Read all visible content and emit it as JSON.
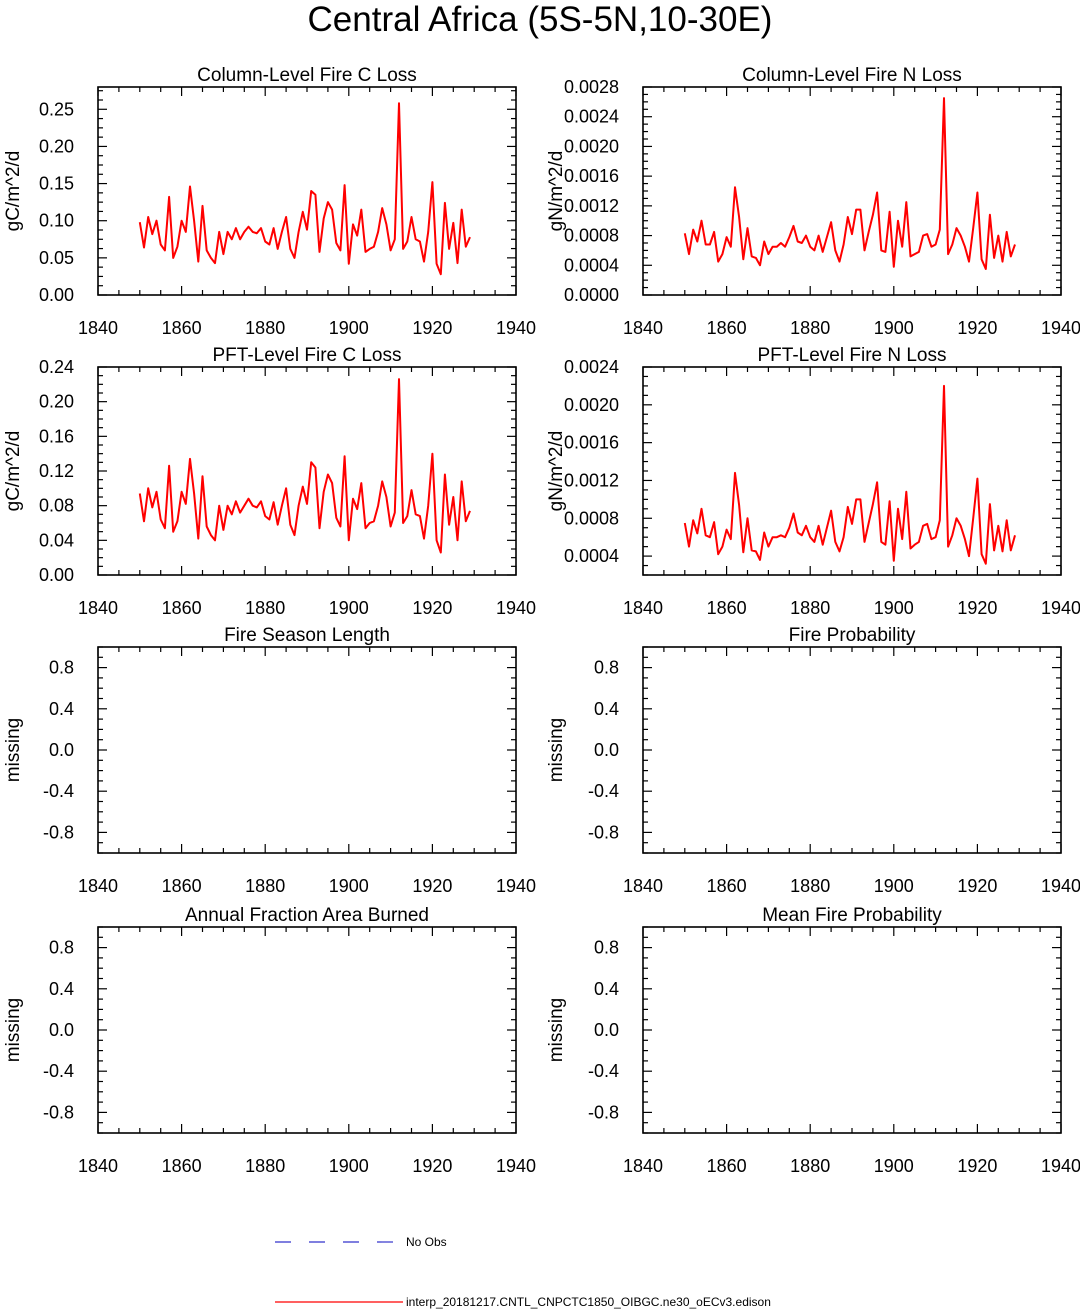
{
  "page_title": "Central Africa (5S-5N,10-30E)",
  "colors": {
    "model_line": "#ff0000",
    "obs_line": "#3333cc",
    "axis": "#000000"
  },
  "legend": {
    "obs_label": "No Obs",
    "model_label": "interp_20181217.CNTL_CNPCTC1850_OIBGC.ne30_oECv3.edison"
  },
  "chart_data": [
    {
      "type": "line",
      "title": "Column-Level Fire C Loss",
      "ylabel": "gC/m^2/d",
      "xlim": [
        1840,
        1940
      ],
      "ylim": [
        0,
        0.28
      ],
      "xticks": [
        1840,
        1860,
        1880,
        1900,
        1920,
        1940
      ],
      "yticks": [
        0,
        0.05,
        0.1,
        0.15,
        0.2,
        0.25
      ],
      "ytick_labels": [
        "0.00",
        "0.05",
        "0.10",
        "0.15",
        "0.20",
        "0.25"
      ],
      "series": [
        {
          "name": "interp_20181217.CNTL_CNPCTC1850_OIBGC.ne30_oECv3.edison",
          "x_start": 1850,
          "values": [
            0.098,
            0.064,
            0.105,
            0.082,
            0.1,
            0.068,
            0.06,
            0.132,
            0.05,
            0.065,
            0.1,
            0.085,
            0.146,
            0.1,
            0.045,
            0.12,
            0.06,
            0.05,
            0.043,
            0.085,
            0.055,
            0.085,
            0.075,
            0.09,
            0.075,
            0.085,
            0.092,
            0.085,
            0.083,
            0.09,
            0.072,
            0.068,
            0.09,
            0.062,
            0.085,
            0.105,
            0.062,
            0.05,
            0.085,
            0.112,
            0.088,
            0.14,
            0.135,
            0.058,
            0.103,
            0.125,
            0.115,
            0.07,
            0.06,
            0.148,
            0.042,
            0.095,
            0.08,
            0.115,
            0.058,
            0.062,
            0.065,
            0.085,
            0.117,
            0.095,
            0.06,
            0.075,
            0.258,
            0.062,
            0.072,
            0.105,
            0.075,
            0.072,
            0.045,
            0.085,
            0.152,
            0.042,
            0.028,
            0.124,
            0.062,
            0.097,
            0.043,
            0.115,
            0.065,
            0.078
          ]
        }
      ]
    },
    {
      "type": "line",
      "title": "Column-Level Fire N Loss",
      "ylabel": "gN/m^2/d",
      "xlim": [
        1840,
        1940
      ],
      "ylim": [
        0,
        0.0028
      ],
      "xticks": [
        1840,
        1860,
        1880,
        1900,
        1920,
        1940
      ],
      "yticks": [
        0,
        0.0004,
        0.0008,
        0.0012,
        0.0016,
        0.002,
        0.0024,
        0.0028
      ],
      "ytick_labels": [
        "0.0000",
        "0.0004",
        "0.0008",
        "0.0012",
        "0.0016",
        "0.0020",
        "0.0024",
        "0.0028"
      ],
      "series": [
        {
          "name": "interp_20181217.CNTL_CNPCTC1850_OIBGC.ne30_oECv3.edison",
          "x_start": 1850,
          "values": [
            0.00083,
            0.00055,
            0.00088,
            0.00072,
            0.001,
            0.00068,
            0.00068,
            0.00085,
            0.00045,
            0.00055,
            0.00078,
            0.00065,
            0.00145,
            0.00105,
            0.00048,
            0.0009,
            0.00052,
            0.0005,
            0.0004,
            0.00072,
            0.00055,
            0.00065,
            0.00065,
            0.0007,
            0.00065,
            0.00078,
            0.00093,
            0.00072,
            0.0007,
            0.0008,
            0.00065,
            0.0006,
            0.0008,
            0.00058,
            0.00078,
            0.00098,
            0.0006,
            0.00045,
            0.00068,
            0.00105,
            0.00082,
            0.00115,
            0.00115,
            0.0006,
            0.00085,
            0.00108,
            0.00138,
            0.0006,
            0.00058,
            0.00112,
            0.00038,
            0.001,
            0.00065,
            0.00125,
            0.00052,
            0.00055,
            0.00058,
            0.0008,
            0.00082,
            0.00065,
            0.00068,
            0.00088,
            0.00265,
            0.00055,
            0.00068,
            0.0009,
            0.0008,
            0.00065,
            0.00045,
            0.0009,
            0.00138,
            0.00048,
            0.00035,
            0.00108,
            0.0005,
            0.0008,
            0.00045,
            0.00085,
            0.00052,
            0.00068
          ]
        }
      ]
    },
    {
      "type": "line",
      "title": "PFT-Level Fire C Loss",
      "ylabel": "gC/m^2/d",
      "xlim": [
        1840,
        1940
      ],
      "ylim": [
        0,
        0.24
      ],
      "xticks": [
        1840,
        1860,
        1880,
        1900,
        1920,
        1940
      ],
      "yticks": [
        0,
        0.04,
        0.08,
        0.12,
        0.16,
        0.2,
        0.24
      ],
      "ytick_labels": [
        "0.00",
        "0.04",
        "0.08",
        "0.12",
        "0.16",
        "0.20",
        "0.24"
      ],
      "series": [
        {
          "name": "interp_20181217.CNTL_CNPCTC1850_OIBGC.ne30_oECv3.edison",
          "x_start": 1850,
          "values": [
            0.094,
            0.062,
            0.1,
            0.078,
            0.096,
            0.064,
            0.054,
            0.126,
            0.05,
            0.062,
            0.096,
            0.082,
            0.134,
            0.094,
            0.042,
            0.114,
            0.056,
            0.046,
            0.04,
            0.08,
            0.052,
            0.08,
            0.07,
            0.085,
            0.072,
            0.08,
            0.088,
            0.08,
            0.078,
            0.085,
            0.068,
            0.064,
            0.084,
            0.058,
            0.08,
            0.1,
            0.058,
            0.046,
            0.08,
            0.102,
            0.082,
            0.13,
            0.124,
            0.054,
            0.096,
            0.116,
            0.106,
            0.066,
            0.056,
            0.137,
            0.04,
            0.088,
            0.076,
            0.106,
            0.054,
            0.06,
            0.062,
            0.08,
            0.108,
            0.09,
            0.056,
            0.072,
            0.226,
            0.06,
            0.068,
            0.098,
            0.07,
            0.068,
            0.042,
            0.08,
            0.14,
            0.04,
            0.026,
            0.116,
            0.058,
            0.09,
            0.04,
            0.108,
            0.062,
            0.074
          ]
        }
      ]
    },
    {
      "type": "line",
      "title": "PFT-Level Fire N Loss",
      "ylabel": "gN/m^2/d",
      "xlim": [
        1840,
        1940
      ],
      "ylim": [
        0.0002,
        0.0024
      ],
      "xticks": [
        1840,
        1860,
        1880,
        1900,
        1920,
        1940
      ],
      "yticks": [
        0.0004,
        0.0008,
        0.0012,
        0.0016,
        0.002,
        0.0024
      ],
      "ytick_labels": [
        "0.0004",
        "0.0008",
        "0.0012",
        "0.0016",
        "0.0020",
        "0.0024"
      ],
      "series": [
        {
          "name": "interp_20181217.CNTL_CNPCTC1850_OIBGC.ne30_oECv3.edison",
          "x_start": 1850,
          "values": [
            0.00075,
            0.0005,
            0.00078,
            0.00064,
            0.0009,
            0.00062,
            0.0006,
            0.00076,
            0.00042,
            0.0005,
            0.00068,
            0.00058,
            0.00128,
            0.00094,
            0.00044,
            0.0008,
            0.00046,
            0.00045,
            0.00036,
            0.00065,
            0.0005,
            0.0006,
            0.0006,
            0.00062,
            0.0006,
            0.0007,
            0.00085,
            0.00065,
            0.00062,
            0.00072,
            0.0006,
            0.00055,
            0.00072,
            0.00052,
            0.0007,
            0.00088,
            0.00055,
            0.00045,
            0.0006,
            0.00092,
            0.00074,
            0.001,
            0.001,
            0.00055,
            0.00075,
            0.00095,
            0.00118,
            0.00055,
            0.00052,
            0.00098,
            0.00035,
            0.0009,
            0.00058,
            0.00108,
            0.00048,
            0.00052,
            0.00055,
            0.00072,
            0.00074,
            0.00058,
            0.0006,
            0.00078,
            0.0022,
            0.0005,
            0.00062,
            0.0008,
            0.00072,
            0.00058,
            0.0004,
            0.0008,
            0.00122,
            0.00042,
            0.00032,
            0.00095,
            0.00046,
            0.00072,
            0.00045,
            0.00078,
            0.00046,
            0.00062
          ]
        }
      ]
    },
    {
      "type": "line",
      "title": "Fire Season Length",
      "ylabel": "missing",
      "xlim": [
        1840,
        1940
      ],
      "ylim": [
        -1,
        1
      ],
      "xticks": [
        1840,
        1860,
        1880,
        1900,
        1920,
        1940
      ],
      "yticks": [
        -0.8,
        -0.4,
        0.0,
        0.4,
        0.8
      ],
      "ytick_labels": [
        "-0.8",
        "-0.4",
        "0.0",
        "0.4",
        "0.8"
      ],
      "series": []
    },
    {
      "type": "line",
      "title": "Fire Probability",
      "ylabel": "missing",
      "xlim": [
        1840,
        1940
      ],
      "ylim": [
        -1,
        1
      ],
      "xticks": [
        1840,
        1860,
        1880,
        1900,
        1920,
        1940
      ],
      "yticks": [
        -0.8,
        -0.4,
        0.0,
        0.4,
        0.8
      ],
      "ytick_labels": [
        "-0.8",
        "-0.4",
        "0.0",
        "0.4",
        "0.8"
      ],
      "series": []
    },
    {
      "type": "line",
      "title": "Annual Fraction Area Burned",
      "ylabel": "missing",
      "xlim": [
        1840,
        1940
      ],
      "ylim": [
        -1,
        1
      ],
      "xticks": [
        1840,
        1860,
        1880,
        1900,
        1920,
        1940
      ],
      "yticks": [
        -0.8,
        -0.4,
        0.0,
        0.4,
        0.8
      ],
      "ytick_labels": [
        "-0.8",
        "-0.4",
        "0.0",
        "0.4",
        "0.8"
      ],
      "series": []
    },
    {
      "type": "line",
      "title": "Mean Fire Probability",
      "ylabel": "missing",
      "xlim": [
        1840,
        1940
      ],
      "ylim": [
        -1,
        1
      ],
      "xticks": [
        1840,
        1860,
        1880,
        1900,
        1920,
        1940
      ],
      "yticks": [
        -0.8,
        -0.4,
        0.0,
        0.4,
        0.8
      ],
      "ytick_labels": [
        "-0.8",
        "-0.4",
        "0.0",
        "0.4",
        "0.8"
      ],
      "series": []
    }
  ]
}
